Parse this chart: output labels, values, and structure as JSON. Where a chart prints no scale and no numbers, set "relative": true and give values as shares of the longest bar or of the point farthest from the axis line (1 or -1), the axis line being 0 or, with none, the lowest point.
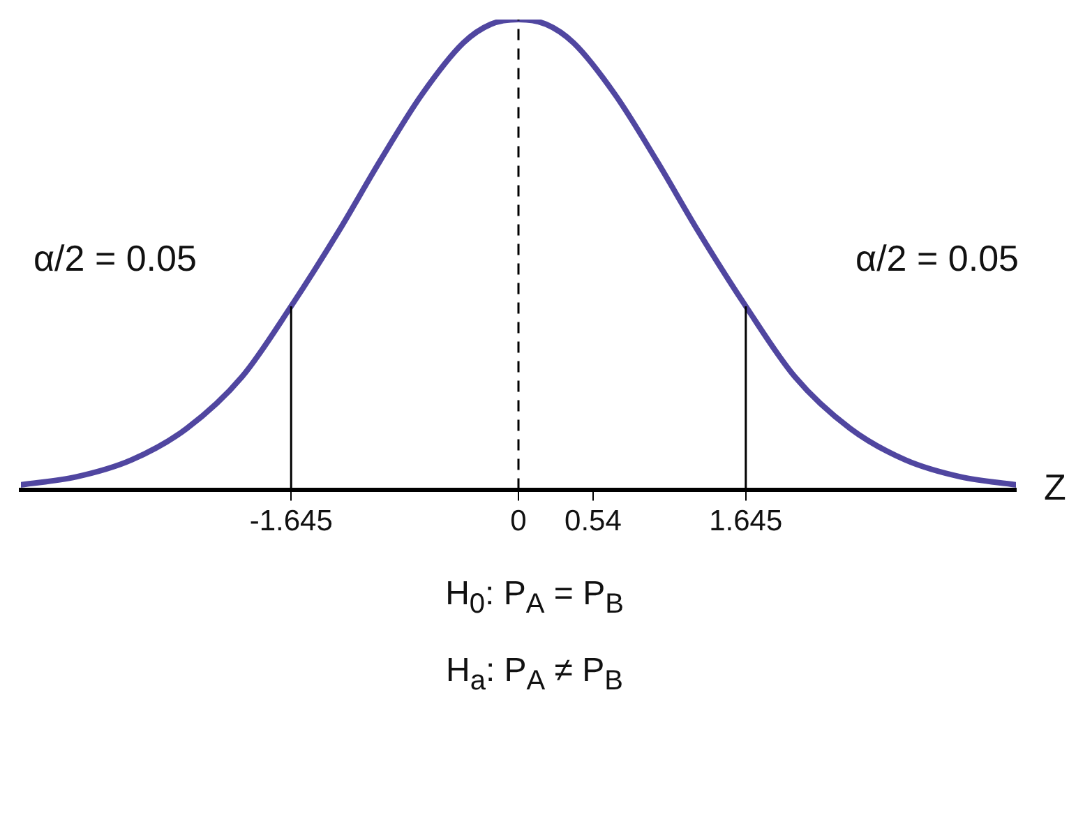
{
  "chart_data": {
    "type": "line",
    "relative": true,
    "xlabel": "Z",
    "series": [
      {
        "color": "#5046a0",
        "x": [
          -3.6,
          -3.2,
          -2.8,
          -2.4,
          -2.0,
          -1.645,
          -1.3,
          -1.0,
          -0.7,
          -0.4,
          -0.2,
          0,
          0.2,
          0.4,
          0.7,
          1.0,
          1.3,
          1.645,
          2.0,
          2.4,
          2.8,
          3.2,
          3.6
        ],
        "values": [
          0.01,
          0.027,
          0.063,
          0.13,
          0.24,
          0.39,
          0.55,
          0.7,
          0.84,
          0.95,
          0.99,
          1,
          0.99,
          0.95,
          0.84,
          0.7,
          0.55,
          0.39,
          0.24,
          0.13,
          0.063,
          0.027,
          0.01
        ]
      }
    ],
    "xlim": [
      -3.6,
      3.6
    ],
    "xticks": [
      -1.645,
      0,
      0.54,
      1.645
    ],
    "ref_lines": [
      {
        "axis": "x",
        "value": -1.645,
        "color": "#000000",
        "line_style": "solid"
      },
      {
        "axis": "x",
        "value": 0,
        "color": "#000000",
        "line_style": "dashed"
      },
      {
        "axis": "x",
        "value": 1.645,
        "color": "#000000",
        "line_style": "solid"
      }
    ],
    "annotations": [
      "α/2 = 0.05",
      "α/2 = 0.05",
      "H$_{0}$: P$_{A}$ = P$_{B}$",
      "H$_{a}$: P$_{A}$ ≠ P$_{B}$"
    ],
    "grid": false,
    "legend": false,
    "marker": "none",
    "line_style": "solid"
  }
}
